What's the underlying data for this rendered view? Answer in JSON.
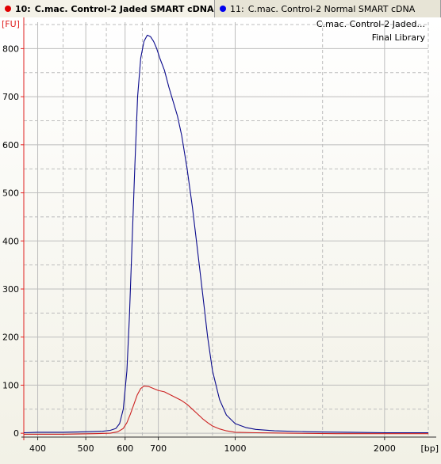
{
  "tabs": [
    {
      "index": "10:",
      "label": "C.mac. Control-2 Jaded SMART cDNA J...",
      "color": "#e00000",
      "active": true
    },
    {
      "index": "11:",
      "label": "C.mac. Control-2 Normal SMART cDNA",
      "color": "#0000ee",
      "active": false
    }
  ],
  "chart_data": {
    "type": "line",
    "ylabel": "[FU]",
    "xlabel": "[bp]",
    "x_scale": "log",
    "xlim": [
      375,
      2450
    ],
    "ylim": [
      -8,
      855
    ],
    "x_ticks": [
      {
        "value": 400,
        "label": "400"
      },
      {
        "value": 500,
        "label": "500"
      },
      {
        "value": 600,
        "label": "600"
      },
      {
        "value": 700,
        "label": "700"
      },
      {
        "value": 1000,
        "label": "1000"
      },
      {
        "value": 2000,
        "label": "2000"
      }
    ],
    "y_ticks": [
      0,
      100,
      200,
      300,
      400,
      500,
      600,
      700,
      800
    ],
    "grid": true,
    "legend_position": "top-right",
    "legend": [
      "C.mac. Control-2 Jaded...",
      "Final Library"
    ],
    "background": "#f2f1e6",
    "axis_color": "#e02020",
    "grid_color": "#bdbdbd",
    "series": [
      {
        "color": "#0a0a8c",
        "points": [
          [
            375,
            1
          ],
          [
            400,
            2
          ],
          [
            450,
            2
          ],
          [
            500,
            3
          ],
          [
            540,
            4
          ],
          [
            560,
            6
          ],
          [
            575,
            10
          ],
          [
            585,
            20
          ],
          [
            595,
            50
          ],
          [
            605,
            130
          ],
          [
            612,
            240
          ],
          [
            620,
            400
          ],
          [
            628,
            560
          ],
          [
            636,
            700
          ],
          [
            645,
            780
          ],
          [
            655,
            815
          ],
          [
            665,
            828
          ],
          [
            675,
            825
          ],
          [
            685,
            815
          ],
          [
            695,
            800
          ],
          [
            705,
            780
          ],
          [
            720,
            755
          ],
          [
            735,
            720
          ],
          [
            750,
            690
          ],
          [
            765,
            660
          ],
          [
            780,
            620
          ],
          [
            800,
            550
          ],
          [
            820,
            470
          ],
          [
            840,
            380
          ],
          [
            860,
            290
          ],
          [
            880,
            200
          ],
          [
            900,
            130
          ],
          [
            930,
            70
          ],
          [
            960,
            38
          ],
          [
            1000,
            20
          ],
          [
            1050,
            12
          ],
          [
            1100,
            8
          ],
          [
            1200,
            5
          ],
          [
            1400,
            3
          ],
          [
            1700,
            2
          ],
          [
            2000,
            1
          ],
          [
            2450,
            1
          ]
        ]
      },
      {
        "color": "#cc2222",
        "points": [
          [
            375,
            -2
          ],
          [
            450,
            -2
          ],
          [
            520,
            -1
          ],
          [
            560,
            0
          ],
          [
            580,
            3
          ],
          [
            595,
            10
          ],
          [
            605,
            22
          ],
          [
            615,
            40
          ],
          [
            625,
            60
          ],
          [
            635,
            80
          ],
          [
            645,
            93
          ],
          [
            655,
            98
          ],
          [
            670,
            97
          ],
          [
            685,
            93
          ],
          [
            700,
            89
          ],
          [
            720,
            86
          ],
          [
            740,
            80
          ],
          [
            760,
            74
          ],
          [
            780,
            68
          ],
          [
            800,
            60
          ],
          [
            820,
            50
          ],
          [
            840,
            40
          ],
          [
            860,
            30
          ],
          [
            880,
            22
          ],
          [
            900,
            15
          ],
          [
            930,
            9
          ],
          [
            960,
            5
          ],
          [
            1000,
            2
          ],
          [
            1100,
            1
          ],
          [
            1300,
            0
          ],
          [
            1600,
            -1
          ],
          [
            2450,
            -1
          ]
        ]
      }
    ]
  }
}
